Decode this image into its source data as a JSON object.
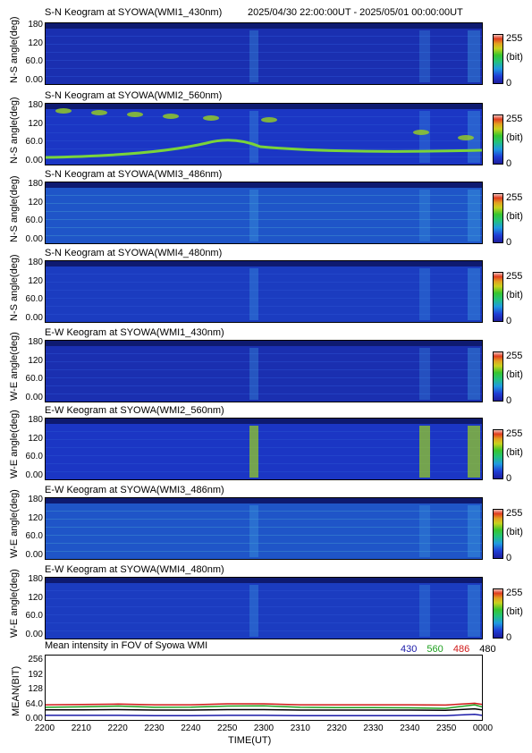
{
  "header": {
    "datetime_range": "2025/04/30 22:00:00UT - 2025/05/01 00:00:00UT"
  },
  "colorbar": {
    "max_label": "255",
    "unit_label": "(bit)",
    "min_label": "0"
  },
  "keograms": [
    {
      "title": "S-N Keogram at SYOWA(WMI1_430nm)",
      "ylabel": "N-S angle(deg)",
      "yticks": [
        "180",
        "120",
        "60.0",
        "0.00"
      ],
      "base_color": "#1a2fb0"
    },
    {
      "title": "S-N Keogram at SYOWA(WMI2_560nm)",
      "ylabel": "N-S angle(deg)",
      "yticks": [
        "180",
        "120",
        "60.0",
        "0.00"
      ],
      "base_color": "#1b36c4"
    },
    {
      "title": "S-N Keogram at SYOWA(WMI3_486nm)",
      "ylabel": "N-S angle(deg)",
      "yticks": [
        "180",
        "120",
        "60.0",
        "0.00"
      ],
      "base_color": "#1f55c8"
    },
    {
      "title": "S-N Keogram at SYOWA(WMI4_480nm)",
      "ylabel": "N-S angle(deg)",
      "yticks": [
        "180",
        "120",
        "60.0",
        "0.00"
      ],
      "base_color": "#1b3cc0"
    },
    {
      "title": "E-W Keogram at SYOWA(WMI1_430nm)",
      "ylabel": "W-E angle(deg)",
      "yticks": [
        "180",
        "120",
        "60.0",
        "0.00"
      ],
      "base_color": "#1a2fb0"
    },
    {
      "title": "E-W Keogram at SYOWA(WMI2_560nm)",
      "ylabel": "W-E angle(deg)",
      "yticks": [
        "180",
        "120",
        "60.0",
        "0.00"
      ],
      "base_color": "#1b36c4"
    },
    {
      "title": "E-W Keogram at SYOWA(WMI3_486nm)",
      "ylabel": "W-E angle(deg)",
      "yticks": [
        "180",
        "120",
        "60.0",
        "0.00"
      ],
      "base_color": "#1f55c8"
    },
    {
      "title": "E-W Keogram at SYOWA(WMI4_480nm)",
      "ylabel": "W-E angle(deg)",
      "yticks": [
        "180",
        "120",
        "60.0",
        "0.00"
      ],
      "base_color": "#1b3cc0"
    }
  ],
  "chart_data": {
    "type": "line",
    "title": "Mean intensity in FOV of Syowa WMI",
    "xlabel": "TIME(UT)",
    "ylabel": "MEAN(BIT)",
    "x_ticks": [
      "2200",
      "2210",
      "2220",
      "2230",
      "2240",
      "2250",
      "2300",
      "2310",
      "2320",
      "2330",
      "2340",
      "2350",
      "0000"
    ],
    "y_ticks": [
      "256",
      "192",
      "128",
      "64.0",
      "0.00"
    ],
    "ylim": [
      0,
      256
    ],
    "x_minutes": [
      0,
      10,
      20,
      30,
      40,
      50,
      60,
      70,
      80,
      90,
      100,
      110,
      118,
      120
    ],
    "series": [
      {
        "name": "430",
        "color": "#1a1aa8",
        "values": [
          18,
          18,
          18,
          17,
          17,
          18,
          18,
          17,
          17,
          17,
          17,
          17,
          22,
          18
        ]
      },
      {
        "name": "560",
        "color": "#1ea01e",
        "values": [
          50,
          52,
          55,
          50,
          51,
          55,
          56,
          50,
          49,
          49,
          48,
          46,
          60,
          52
        ]
      },
      {
        "name": "486",
        "color": "#d01818",
        "values": [
          60,
          61,
          63,
          60,
          60,
          64,
          64,
          60,
          60,
          60,
          60,
          59,
          66,
          62
        ]
      },
      {
        "name": "480",
        "color": "#000000",
        "values": [
          40,
          40,
          41,
          39,
          39,
          41,
          41,
          39,
          39,
          39,
          39,
          38,
          44,
          40
        ]
      }
    ]
  }
}
